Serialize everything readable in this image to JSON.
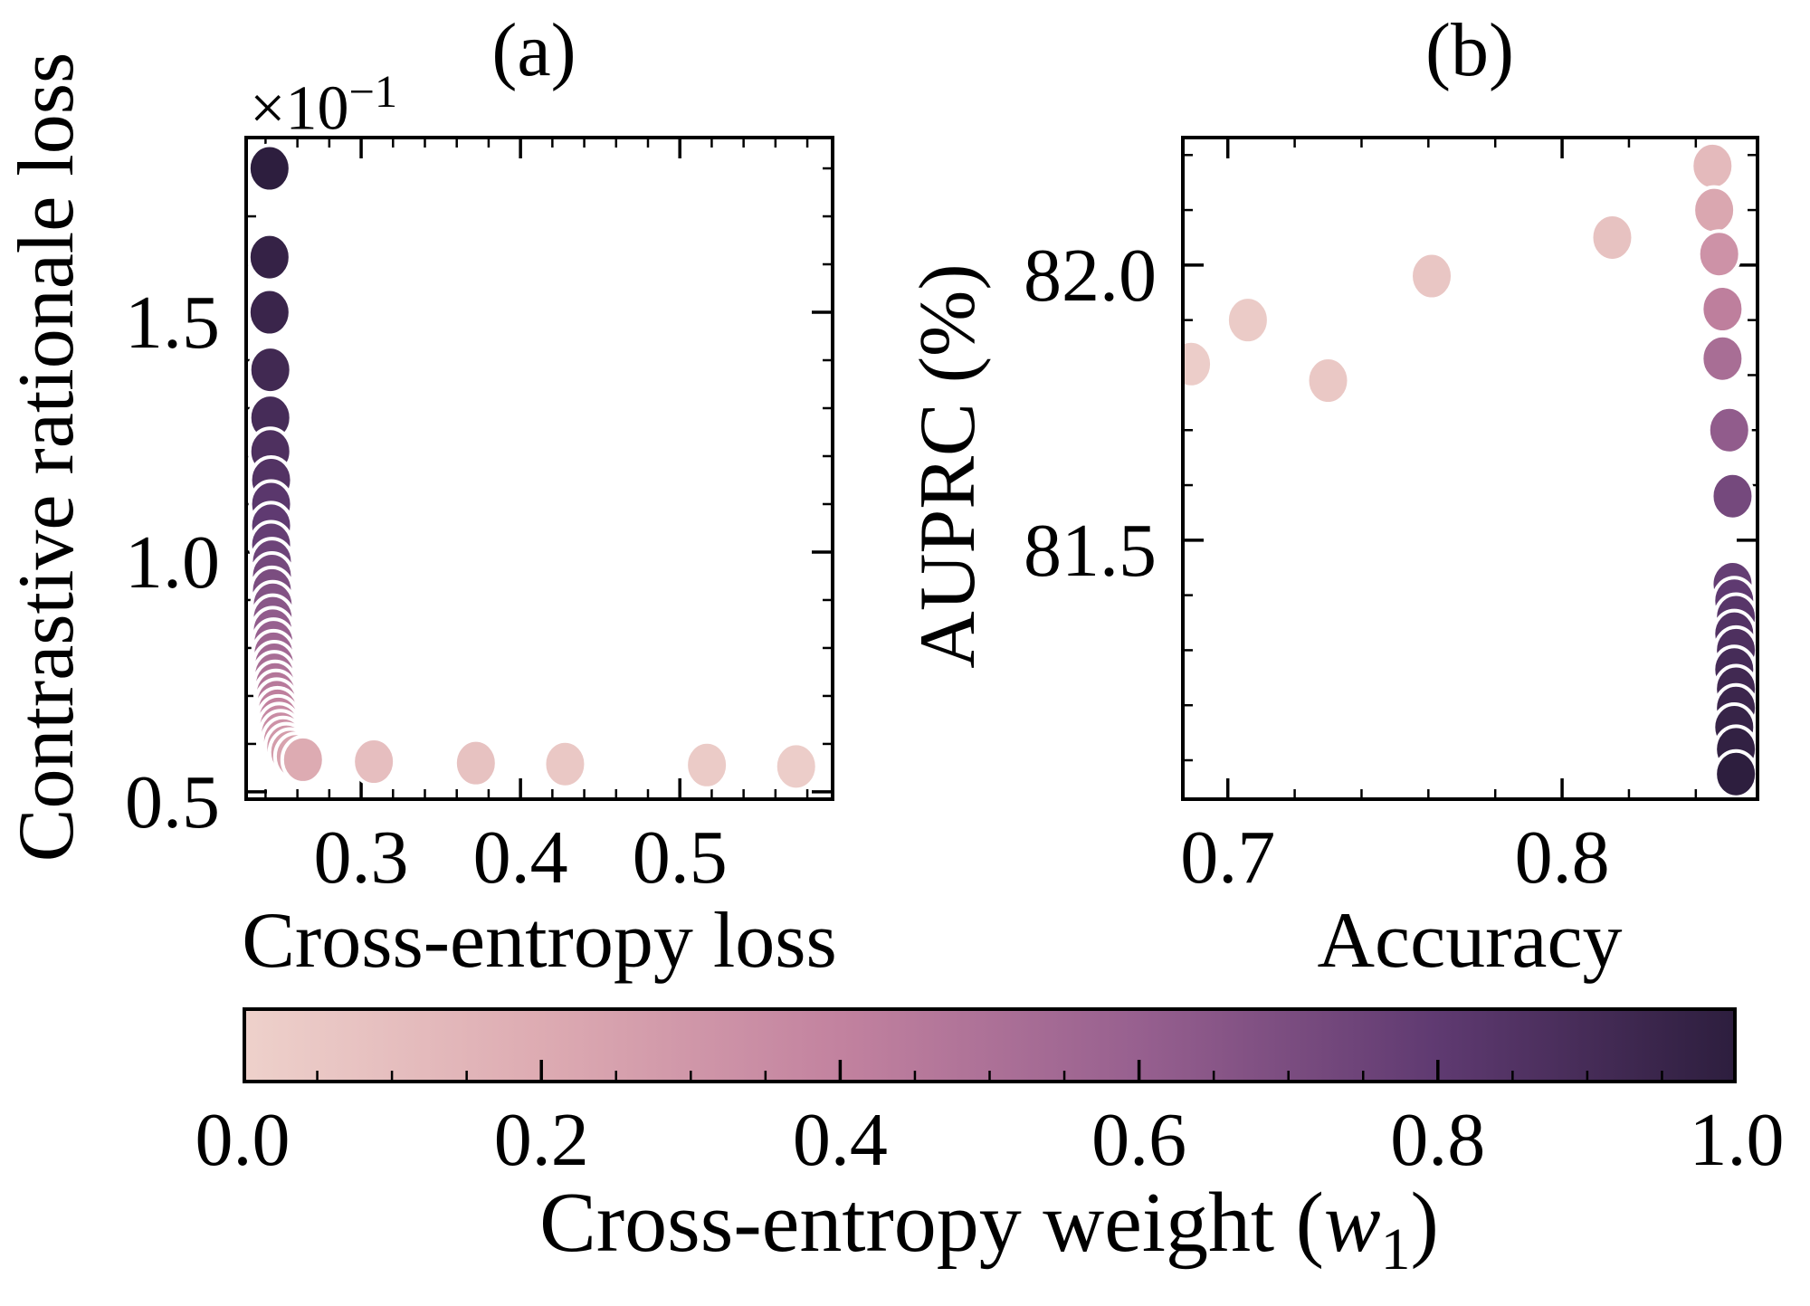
{
  "figure": {
    "colorbar": {
      "label": {
        "pre": "Cross-entropy weight (",
        "var": "w",
        "sub": "1",
        "post": ")"
      },
      "ticks": {
        "values": [
          0.0,
          0.2,
          0.4,
          0.6,
          0.8,
          1.0
        ],
        "labels": [
          "0.0",
          "0.2",
          "0.4",
          "0.6",
          "0.8",
          "1.0"
        ],
        "minor_step": 0.05
      },
      "range": [
        0.0,
        1.0
      ],
      "colormap_stops": [
        [
          0.0,
          "#eed1cb"
        ],
        [
          0.2,
          "#ddabb2"
        ],
        [
          0.4,
          "#c2829f"
        ],
        [
          0.6,
          "#97608f"
        ],
        [
          0.8,
          "#5f3a71"
        ],
        [
          1.0,
          "#2d1e3e"
        ]
      ]
    },
    "colors": {
      "spine": "#000000",
      "marker_edge": "#ffffff",
      "background": "#ffffff"
    }
  },
  "chart_data": [
    {
      "type": "scatter",
      "panel": "a",
      "title": "(a)",
      "offset": {
        "base": "×10",
        "exp": "−1"
      },
      "xlabel": "Cross-entropy loss",
      "ylabel": "Contrastive rationale loss",
      "xlim": [
        0.2267,
        0.597
      ],
      "ylim": [
        0.481,
        1.868
      ],
      "y_scale_note": "y values shown ×10⁻¹",
      "xticks": {
        "values": [
          0.3,
          0.4,
          0.5
        ],
        "labels": [
          "0.3",
          "0.4",
          "0.5"
        ],
        "minor_step": 0.02
      },
      "yticks": {
        "values": [
          0.5,
          1.0,
          1.5
        ],
        "labels": [
          "0.5",
          "1.0",
          "1.5"
        ],
        "minor_step": 0.1
      },
      "color_dim": "w1",
      "points": [
        [
          0.2425,
          1.8,
          1.0
        ],
        [
          0.2425,
          1.615,
          0.97
        ],
        [
          0.2425,
          1.5,
          0.95
        ],
        [
          0.243,
          1.38,
          0.92
        ],
        [
          0.243,
          1.28,
          0.9
        ],
        [
          0.243,
          1.21,
          0.87
        ],
        [
          0.2435,
          1.15,
          0.85
        ],
        [
          0.2435,
          1.1,
          0.82
        ],
        [
          0.2435,
          1.055,
          0.8
        ],
        [
          0.2435,
          1.015,
          0.78
        ],
        [
          0.244,
          0.98,
          0.75
        ],
        [
          0.244,
          0.95,
          0.72
        ],
        [
          0.244,
          0.92,
          0.7
        ],
        [
          0.2445,
          0.89,
          0.67
        ],
        [
          0.2445,
          0.862,
          0.65
        ],
        [
          0.2445,
          0.836,
          0.62
        ],
        [
          0.245,
          0.812,
          0.6
        ],
        [
          0.245,
          0.788,
          0.57
        ],
        [
          0.2455,
          0.765,
          0.55
        ],
        [
          0.2455,
          0.744,
          0.52
        ],
        [
          0.246,
          0.724,
          0.5
        ],
        [
          0.2465,
          0.705,
          0.47
        ],
        [
          0.247,
          0.687,
          0.45
        ],
        [
          0.2475,
          0.669,
          0.42
        ],
        [
          0.248,
          0.652,
          0.4
        ],
        [
          0.2485,
          0.636,
          0.37
        ],
        [
          0.2495,
          0.621,
          0.35
        ],
        [
          0.251,
          0.607,
          0.32
        ],
        [
          0.253,
          0.594,
          0.3
        ],
        [
          0.2555,
          0.583,
          0.27
        ],
        [
          0.259,
          0.574,
          0.24
        ],
        [
          0.2635,
          0.567,
          0.2
        ],
        [
          0.308,
          0.563,
          0.1
        ],
        [
          0.372,
          0.56,
          0.08
        ],
        [
          0.428,
          0.558,
          0.05
        ],
        [
          0.517,
          0.556,
          0.03
        ],
        [
          0.573,
          0.553,
          0.02
        ]
      ]
    },
    {
      "type": "scatter",
      "panel": "b",
      "title": "(b)",
      "xlabel": "Accuracy",
      "ylabel": "AUPRC (%)",
      "xlim": [
        0.686,
        0.859
      ],
      "ylim": [
        81.026,
        82.235
      ],
      "xticks": {
        "values": [
          0.7,
          0.8
        ],
        "labels": [
          "0.7",
          "0.8"
        ],
        "minor_step": 0.02
      },
      "yticks": {
        "values": [
          81.5,
          82.0
        ],
        "labels": [
          "81.5",
          "82.0"
        ],
        "minor_step": 0.1
      },
      "color_dim": "w1",
      "points": [
        [
          0.689,
          81.82,
          0.02
        ],
        [
          0.706,
          81.9,
          0.03
        ],
        [
          0.73,
          81.79,
          0.05
        ],
        [
          0.761,
          81.98,
          0.06
        ],
        [
          0.815,
          82.05,
          0.08
        ],
        [
          0.845,
          82.18,
          0.12
        ],
        [
          0.8455,
          82.1,
          0.22
        ],
        [
          0.847,
          82.02,
          0.32
        ],
        [
          0.848,
          81.92,
          0.42
        ],
        [
          0.848,
          81.83,
          0.52
        ],
        [
          0.85,
          81.7,
          0.62
        ],
        [
          0.851,
          81.58,
          0.72
        ],
        [
          0.851,
          81.42,
          0.78
        ],
        [
          0.8515,
          81.39,
          0.8
        ],
        [
          0.852,
          81.36,
          0.83
        ],
        [
          0.8515,
          81.33,
          0.85
        ],
        [
          0.852,
          81.3,
          0.87
        ],
        [
          0.8515,
          81.265,
          0.9
        ],
        [
          0.852,
          81.23,
          0.92
        ],
        [
          0.852,
          81.195,
          0.94
        ],
        [
          0.8515,
          81.16,
          0.96
        ],
        [
          0.852,
          81.12,
          0.98
        ],
        [
          0.852,
          81.075,
          1.0
        ]
      ]
    }
  ]
}
